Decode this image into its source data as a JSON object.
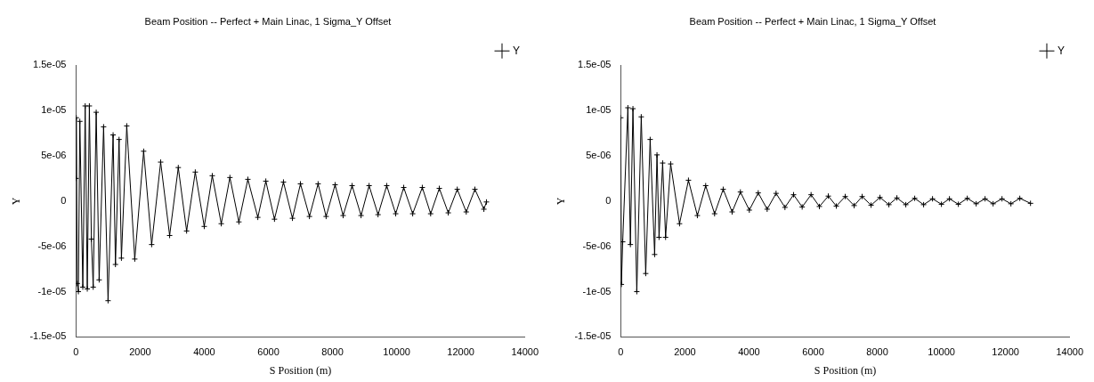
{
  "chart_data": [
    {
      "type": "line",
      "title": "Beam Position -- Perfect + Main Linac, 1 Sigma_Y Offset",
      "xlabel": "S Position (m)",
      "ylabel": "Y",
      "xlim": [
        0,
        14000
      ],
      "xticks": [
        0,
        2000,
        4000,
        6000,
        8000,
        10000,
        12000,
        14000
      ],
      "ylim": [
        -1.5e-05,
        1.5e-05
      ],
      "yticks": [
        {
          "value": -1.5e-05,
          "label": "-1.5e-05"
        },
        {
          "value": -1e-05,
          "label": "-1e-05"
        },
        {
          "value": -5e-06,
          "label": "-5e-06"
        },
        0,
        {
          "value": 5e-06,
          "label": "5e-06"
        },
        {
          "value": 1e-05,
          "label": "1e-05"
        },
        {
          "value": 1.5e-05,
          "label": "1.5e-05"
        }
      ],
      "grid": false,
      "legend": "top right",
      "marker": "cross",
      "line_style": "solid",
      "series": [
        {
          "name": "Y",
          "color": "#000000",
          "x": [
            0,
            9,
            40,
            74,
            120,
            213,
            287,
            352,
            417,
            480,
            537,
            630,
            722,
            861,
            1000,
            1157,
            1231,
            1343,
            1417,
            1583,
            1833,
            2110,
            2360,
            2640,
            2920,
            3190,
            3450,
            3720,
            4000,
            4250,
            4530,
            4800,
            5080,
            5360,
            5670,
            5920,
            6190,
            6470,
            6750,
            7000,
            7280,
            7550,
            7800,
            8080,
            8330,
            8610,
            8890,
            9140,
            9420,
            9690,
            9970,
            10220,
            10500,
            10800,
            11060,
            11330,
            11610,
            11890,
            12170,
            12440,
            12720,
            12800
          ],
          "values": [
            2.5e-06,
            9.2e-06,
            -9.1e-06,
            -1e-05,
            8.8e-06,
            -9.5e-06,
            1.05e-05,
            -9.7e-06,
            1.05e-05,
            -4.2e-06,
            -9.5e-06,
            9.8e-06,
            -8.7e-06,
            8.2e-06,
            -1.1e-05,
            7.3e-06,
            -7e-06,
            6.8e-06,
            -6.3e-06,
            8.3e-06,
            -6.4e-06,
            5.5e-06,
            -4.8e-06,
            4.3e-06,
            -3.8e-06,
            3.7e-06,
            -3.3e-06,
            3.2e-06,
            -2.8e-06,
            2.8e-06,
            -2.5e-06,
            2.6e-06,
            -2.3e-06,
            2.4e-06,
            -1.8e-06,
            2.2e-06,
            -2e-06,
            2.1e-06,
            -1.9e-06,
            1.9e-06,
            -1.7e-06,
            1.9e-06,
            -1.7e-06,
            1.8e-06,
            -1.6e-06,
            1.7e-06,
            -1.6e-06,
            1.7e-06,
            -1.5e-06,
            1.7e-06,
            -1.4e-06,
            1.5e-06,
            -1.4e-06,
            1.5e-06,
            -1.4e-06,
            1.4e-06,
            -1.3e-06,
            1.3e-06,
            -1.2e-06,
            1.3e-06,
            -9e-07,
            -1e-07
          ]
        }
      ]
    },
    {
      "type": "line",
      "title": "Beam Position -- Perfect + Main Linac, 1 Sigma_Y Offset",
      "xlabel": "S Position (m)",
      "ylabel": "Y",
      "xlim": [
        0,
        14000
      ],
      "xticks": [
        0,
        2000,
        4000,
        6000,
        8000,
        10000,
        12000,
        14000
      ],
      "ylim": [
        -1.5e-05,
        1.5e-05
      ],
      "yticks": [
        {
          "value": -1.5e-05,
          "label": "-1.5e-05"
        },
        {
          "value": -1e-05,
          "label": "-1e-05"
        },
        {
          "value": -5e-06,
          "label": "-5e-06"
        },
        0,
        {
          "value": 5e-06,
          "label": "5e-06"
        },
        {
          "value": 1e-05,
          "label": "1e-05"
        },
        {
          "value": 1.5e-05,
          "label": "1.5e-05"
        }
      ],
      "grid": false,
      "legend": "top right",
      "marker": "cross",
      "line_style": "solid",
      "series": [
        {
          "name": "Y",
          "color": "#000000",
          "x": [
            0,
            20,
            60,
            222,
            300,
            380,
            500,
            639,
            778,
            917,
            1056,
            1130,
            1194,
            1306,
            1398,
            1556,
            1833,
            2111,
            2389,
            2648,
            2926,
            3194,
            3472,
            3731,
            4009,
            4287,
            4565,
            4843,
            5120,
            5389,
            5657,
            5935,
            6194,
            6472,
            6722,
            7000,
            7278,
            7528,
            7806,
            8083,
            8361,
            8611,
            8889,
            9167,
            9444,
            9722,
            10000,
            10250,
            10528,
            10806,
            11083,
            11361,
            11611,
            11889,
            12167,
            12444,
            12778
          ],
          "values": [
            9.2e-06,
            -9.2e-06,
            -4.5e-06,
            1.03e-05,
            -4.8e-06,
            1.02e-05,
            -1e-05,
            9.3e-06,
            -8e-06,
            6.8e-06,
            -5.9e-06,
            5.1e-06,
            -4e-06,
            4.2e-06,
            -4e-06,
            4.1e-06,
            -2.5e-06,
            2.3e-06,
            -1.6e-06,
            1.7e-06,
            -1.4e-06,
            1.3e-06,
            -1.2e-06,
            1e-06,
            -1e-06,
            9e-07,
            -9e-07,
            8.5e-07,
            -7e-07,
            7e-07,
            -6.5e-07,
            7e-07,
            -6e-07,
            5.5e-07,
            -5.5e-07,
            5e-07,
            -5e-07,
            5e-07,
            -4.5e-07,
            4e-07,
            -4e-07,
            3.5e-07,
            -4e-07,
            3e-07,
            -4e-07,
            2.5e-07,
            -3.5e-07,
            2.5e-07,
            -3.5e-07,
            3e-07,
            -3e-07,
            2.5e-07,
            -3e-07,
            2.5e-07,
            -3e-07,
            3e-07,
            -2.5e-07
          ]
        }
      ]
    }
  ]
}
